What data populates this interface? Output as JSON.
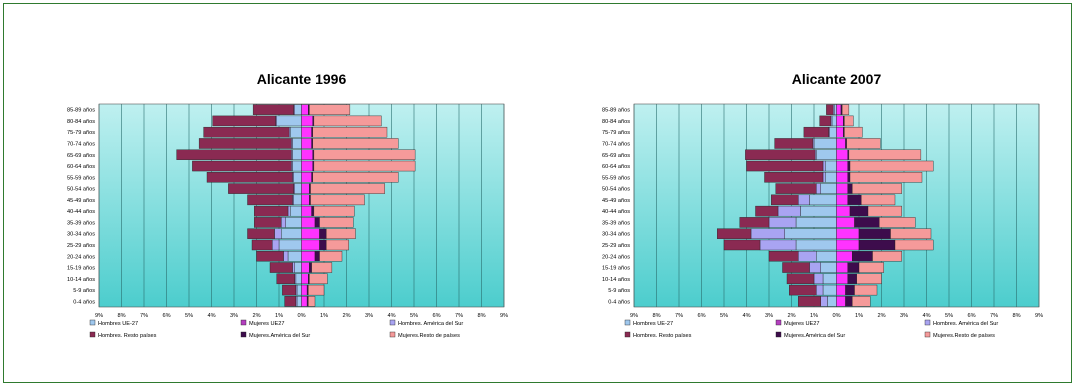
{
  "age_groups": [
    "0-4 años",
    "5-9 años",
    "10-14 años",
    "15-19 años",
    "20-24 años",
    "25-29 años",
    "30-34 años",
    "35-39 años",
    "40-44 años",
    "45-49 años",
    "50-54 años",
    "55-59 años",
    "60-64 años",
    "65-69 años",
    "70-74 años",
    "75-79 años",
    "80-84 años",
    "85-89 años"
  ],
  "x_ticks": [
    "9%",
    "8%",
    "7%",
    "6%",
    "5%",
    "4%",
    "3%",
    "2%",
    "1%",
    "0%",
    "1%",
    "2%",
    "3%",
    "4%",
    "5%",
    "6%",
    "7%",
    "8%",
    "9%"
  ],
  "legend": [
    {
      "key": "h_ue",
      "label": "Hombres UE-27",
      "color": "#9fc8ee"
    },
    {
      "key": "m_ue",
      "label": "Mujeres UE27",
      "color": "#b43fbf"
    },
    {
      "key": "h_as",
      "label": "Hombres. América del Sur",
      "color": "#a9a4f2"
    },
    {
      "key": "h_rp",
      "label": "Hombres. Resto países",
      "color": "#8a2a52"
    },
    {
      "key": "m_as",
      "label": "Mujeres.América del Sur",
      "color": "#3d0c4c"
    },
    {
      "key": "m_rp",
      "label": "Mujeres.Resto de países",
      "color": "#f59a9a"
    }
  ],
  "colors": {
    "background_top": "#bff0f0",
    "background_bottom": "#4ccdcd",
    "frame": "#2f7a2f",
    "men_side": {
      "ue": "#9fc8ee",
      "america": "#a9a4f2",
      "resto": "#8a2a52"
    },
    "women_side": {
      "ue": "#ff33ff",
      "america": "#3d0c4c",
      "resto": "#f59a9a"
    }
  },
  "chart_data": [
    {
      "type": "bar",
      "orientation": "horizontal-pyramid",
      "title": "Alicante 1996",
      "xlim": [
        -9,
        9
      ],
      "categories": [
        "0-4 años",
        "5-9 años",
        "10-14 años",
        "15-19 años",
        "20-24 años",
        "25-29 años",
        "30-34 años",
        "35-39 años",
        "40-44 años",
        "45-49 años",
        "50-54 años",
        "55-59 años",
        "60-64 años",
        "65-69 años",
        "70-74 años",
        "75-79 años",
        "80-84 años",
        "85-89 años"
      ],
      "series": [
        {
          "name": "Hombres UE-27",
          "values": [
            0.2,
            0.2,
            0.25,
            0.3,
            0.6,
            1.0,
            0.9,
            0.7,
            0.5,
            0.35,
            0.3,
            0.35,
            0.4,
            0.4,
            0.4,
            0.5,
            1.1,
            0.3
          ]
        },
        {
          "name": "Hombres. América del Sur",
          "values": [
            0.05,
            0.05,
            0.05,
            0.1,
            0.2,
            0.3,
            0.3,
            0.2,
            0.1,
            0.05,
            0.05,
            0.05,
            0.05,
            0.05,
            0.05,
            0.05,
            0.05,
            0.05
          ]
        },
        {
          "name": "Hombres. Resto países",
          "values": [
            0.5,
            0.6,
            0.8,
            1.0,
            1.2,
            0.9,
            1.2,
            1.2,
            1.5,
            2.0,
            2.9,
            3.8,
            4.4,
            5.1,
            4.1,
            3.8,
            2.8,
            1.8
          ]
        },
        {
          "name": "Mujeres UE27",
          "values": [
            0.25,
            0.25,
            0.3,
            0.35,
            0.6,
            0.8,
            0.8,
            0.6,
            0.45,
            0.35,
            0.35,
            0.45,
            0.5,
            0.5,
            0.45,
            0.45,
            0.5,
            0.3
          ]
        },
        {
          "name": "Mujeres.América del Sur",
          "values": [
            0.05,
            0.05,
            0.05,
            0.1,
            0.2,
            0.3,
            0.3,
            0.2,
            0.1,
            0.05,
            0.05,
            0.05,
            0.05,
            0.05,
            0.05,
            0.05,
            0.05,
            0.05
          ]
        },
        {
          "name": "Mujeres.Resto de países",
          "values": [
            0.3,
            0.7,
            0.8,
            0.9,
            1.0,
            1.0,
            1.3,
            1.5,
            1.8,
            2.4,
            3.3,
            3.8,
            4.5,
            4.5,
            3.8,
            3.3,
            3.0,
            1.8
          ]
        }
      ]
    },
    {
      "type": "bar",
      "orientation": "horizontal-pyramid",
      "title": "Alicante 2007",
      "xlim": [
        -9,
        9
      ],
      "categories": [
        "0-4 años",
        "5-9 años",
        "10-14 años",
        "15-19 años",
        "20-24 años",
        "25-29 años",
        "30-34 años",
        "35-39 años",
        "40-44 años",
        "45-49 años",
        "50-54 años",
        "55-59 años",
        "60-64 años",
        "65-69 años",
        "70-74 años",
        "75-79 años",
        "80-84 años",
        "85-89 años"
      ],
      "series": [
        {
          "name": "Hombres UE-27",
          "values": [
            0.4,
            0.6,
            0.6,
            0.7,
            0.9,
            1.8,
            2.3,
            1.8,
            1.6,
            1.2,
            0.7,
            0.5,
            0.5,
            0.9,
            1.0,
            0.3,
            0.2,
            0.1
          ]
        },
        {
          "name": "Hombres. América del Sur",
          "values": [
            0.3,
            0.3,
            0.4,
            0.5,
            0.8,
            1.6,
            1.5,
            1.2,
            1.0,
            0.5,
            0.2,
            0.1,
            0.1,
            0.05,
            0.05,
            0.05,
            0.05,
            0.05
          ]
        },
        {
          "name": "Hombres. Resto países",
          "values": [
            1.0,
            1.2,
            1.2,
            1.2,
            1.3,
            1.6,
            1.5,
            1.3,
            1.0,
            1.2,
            1.8,
            2.6,
            3.4,
            3.1,
            1.7,
            1.1,
            0.5,
            0.3
          ]
        },
        {
          "name": "Mujeres UE27",
          "values": [
            0.4,
            0.4,
            0.5,
            0.5,
            0.7,
            1.0,
            1.0,
            0.8,
            0.6,
            0.5,
            0.5,
            0.5,
            0.5,
            0.5,
            0.4,
            0.3,
            0.3,
            0.2
          ]
        },
        {
          "name": "Mujeres.América del Sur",
          "values": [
            0.3,
            0.4,
            0.4,
            0.5,
            0.9,
            1.6,
            1.4,
            1.1,
            0.8,
            0.6,
            0.2,
            0.1,
            0.1,
            0.05,
            0.05,
            0.05,
            0.05,
            0.05
          ]
        },
        {
          "name": "Mujeres.Resto de países",
          "values": [
            0.8,
            1.0,
            1.1,
            1.1,
            1.3,
            1.7,
            1.8,
            1.6,
            1.5,
            1.5,
            2.2,
            3.2,
            3.7,
            3.2,
            1.5,
            0.8,
            0.4,
            0.3
          ]
        }
      ]
    }
  ]
}
